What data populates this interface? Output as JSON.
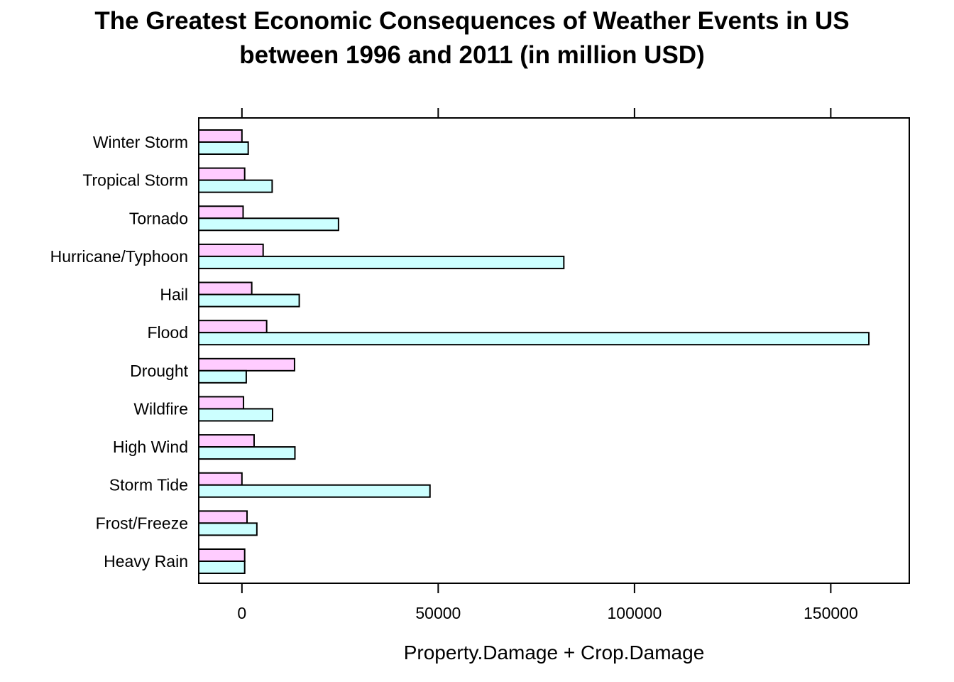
{
  "chart_data": {
    "type": "bar",
    "orientation": "horizontal",
    "title_line1": "The Greatest Economic Consequences of Weather Events in US",
    "title_line2": "between 1996 and 2011 (in million USD)",
    "xlabel": "Property.Damage + Crop.Damage",
    "ylabel": "",
    "xlim": [
      -11000,
      170000
    ],
    "xticks": [
      0,
      50000,
      100000,
      150000
    ],
    "xtick_labels": [
      "0",
      "50000",
      "100000",
      "150000"
    ],
    "categories": [
      "Winter Storm",
      "Tropical Storm",
      "Tornado",
      "Hurricane/Typhoon",
      "Hail",
      "Flood",
      "Drought",
      "Wildfire",
      "High Wind",
      "Storm Tide",
      "Frost/Freeze",
      "Heavy Rain"
    ],
    "series": [
      {
        "color": "#ffccff",
        "values": [
          0,
          700,
          300,
          5400,
          2500,
          6300,
          13400,
          400,
          3100,
          0,
          1300,
          700
        ]
      },
      {
        "color": "#ccffff",
        "values": [
          1600,
          7700,
          24600,
          82000,
          14600,
          159700,
          1100,
          7800,
          13500,
          47900,
          3800,
          700
        ]
      }
    ]
  }
}
